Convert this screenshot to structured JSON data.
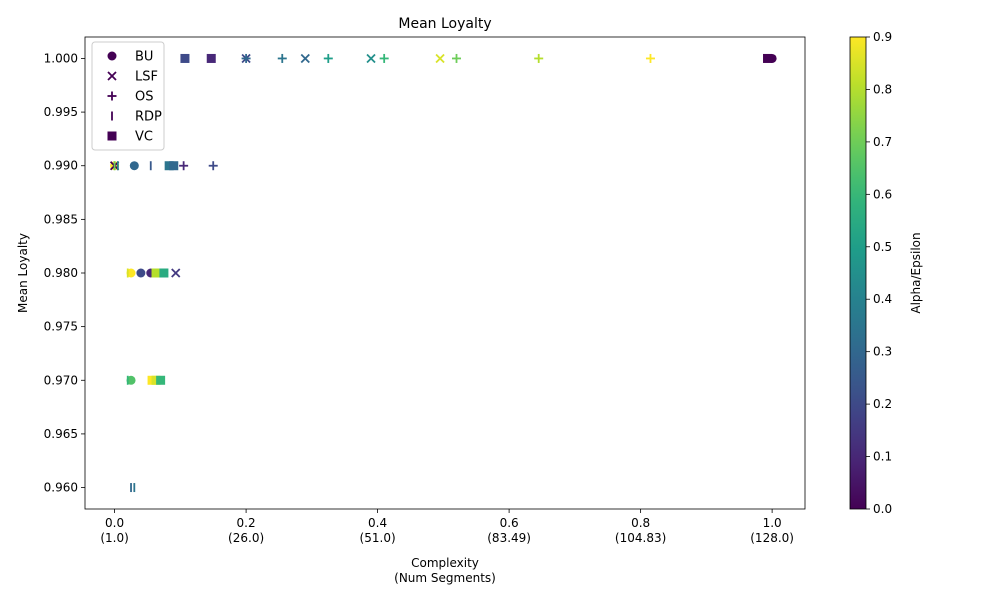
{
  "chart_data": {
    "type": "scatter",
    "title": "Mean Loyalty",
    "xlabel_line1": "Complexity",
    "xlabel_line2": "(Num Segments)",
    "ylabel": "Mean Loyalty",
    "colorbar_label": "Alpha/Epsilon",
    "xlim": [
      -0.045,
      1.05
    ],
    "ylim": [
      0.958,
      1.002
    ],
    "x_ticks": [
      {
        "value": 0.0,
        "label": "0.0",
        "sublabel": "(1.0)"
      },
      {
        "value": 0.2,
        "label": "0.2",
        "sublabel": "(26.0)"
      },
      {
        "value": 0.4,
        "label": "0.4",
        "sublabel": "(51.0)"
      },
      {
        "value": 0.6,
        "label": "0.6",
        "sublabel": "(83.49)"
      },
      {
        "value": 0.8,
        "label": "0.8",
        "sublabel": "(104.83)"
      },
      {
        "value": 1.0,
        "label": "1.0",
        "sublabel": "(128.0)"
      }
    ],
    "y_ticks": [
      {
        "value": 0.96,
        "label": "0.960"
      },
      {
        "value": 0.965,
        "label": "0.965"
      },
      {
        "value": 0.97,
        "label": "0.970"
      },
      {
        "value": 0.975,
        "label": "0.975"
      },
      {
        "value": 0.98,
        "label": "0.980"
      },
      {
        "value": 0.985,
        "label": "0.985"
      },
      {
        "value": 0.99,
        "label": "0.990"
      },
      {
        "value": 0.995,
        "label": "0.995"
      },
      {
        "value": 1.0,
        "label": "1.000"
      }
    ],
    "colorbar_range": [
      0.0,
      0.9
    ],
    "colorbar_ticks": [
      "0.0",
      "0.1",
      "0.2",
      "0.3",
      "0.4",
      "0.5",
      "0.6",
      "0.7",
      "0.8",
      "0.9"
    ],
    "colormap": "viridis",
    "grid": false,
    "legend_position": "upper-left",
    "series": [
      {
        "name": "BU",
        "marker": "circle",
        "points": [
          {
            "x": 1.0,
            "y": 1.0,
            "c": 0.0
          },
          {
            "x": 0.0,
            "y": 0.99,
            "c": 0.9
          },
          {
            "x": 0.03,
            "y": 0.99,
            "c": 0.3
          },
          {
            "x": 0.055,
            "y": 0.98,
            "c": 0.1
          },
          {
            "x": 0.04,
            "y": 0.98,
            "c": 0.2
          },
          {
            "x": 0.025,
            "y": 0.98,
            "c": 0.9
          },
          {
            "x": 0.025,
            "y": 0.97,
            "c": 0.65
          }
        ]
      },
      {
        "name": "LSF",
        "marker": "x",
        "points": [
          {
            "x": 0.2,
            "y": 1.0,
            "c": 0.2
          },
          {
            "x": 0.29,
            "y": 1.0,
            "c": 0.3
          },
          {
            "x": 0.39,
            "y": 1.0,
            "c": 0.45
          },
          {
            "x": 0.495,
            "y": 1.0,
            "c": 0.85
          },
          {
            "x": 0.0,
            "y": 0.99,
            "c": 0.0
          },
          {
            "x": 0.093,
            "y": 0.98,
            "c": 0.15
          }
        ]
      },
      {
        "name": "OS",
        "marker": "plus",
        "points": [
          {
            "x": 0.2,
            "y": 1.0,
            "c": 0.3
          },
          {
            "x": 0.255,
            "y": 1.0,
            "c": 0.35
          },
          {
            "x": 0.325,
            "y": 1.0,
            "c": 0.5
          },
          {
            "x": 0.41,
            "y": 1.0,
            "c": 0.6
          },
          {
            "x": 0.52,
            "y": 1.0,
            "c": 0.7
          },
          {
            "x": 0.645,
            "y": 1.0,
            "c": 0.8
          },
          {
            "x": 0.815,
            "y": 1.0,
            "c": 0.9
          },
          {
            "x": 0.105,
            "y": 0.99,
            "c": 0.1
          },
          {
            "x": 0.15,
            "y": 0.99,
            "c": 0.2
          }
        ]
      },
      {
        "name": "RDP",
        "marker": "vline",
        "points": [
          {
            "x": 0.0,
            "y": 0.99,
            "c": 0.7
          },
          {
            "x": 0.005,
            "y": 0.99,
            "c": 0.4
          },
          {
            "x": 0.055,
            "y": 0.99,
            "c": 0.25
          },
          {
            "x": 0.02,
            "y": 0.98,
            "c": 0.85
          },
          {
            "x": 0.02,
            "y": 0.97,
            "c": 0.6
          },
          {
            "x": 0.025,
            "y": 0.96,
            "c": 0.3
          },
          {
            "x": 0.03,
            "y": 0.96,
            "c": 0.35
          }
        ]
      },
      {
        "name": "VC",
        "marker": "square",
        "points": [
          {
            "x": 0.993,
            "y": 1.0,
            "c": 0.0
          },
          {
            "x": 0.107,
            "y": 1.0,
            "c": 0.2
          },
          {
            "x": 0.147,
            "y": 1.0,
            "c": 0.1
          },
          {
            "x": 0.083,
            "y": 0.99,
            "c": 0.35
          },
          {
            "x": 0.09,
            "y": 0.99,
            "c": 0.3
          },
          {
            "x": 0.063,
            "y": 0.98,
            "c": 0.8
          },
          {
            "x": 0.075,
            "y": 0.98,
            "c": 0.55
          },
          {
            "x": 0.057,
            "y": 0.97,
            "c": 0.9
          },
          {
            "x": 0.063,
            "y": 0.97,
            "c": 0.85
          },
          {
            "x": 0.07,
            "y": 0.97,
            "c": 0.6
          }
        ]
      }
    ],
    "legend_marker_color": "#440154"
  }
}
